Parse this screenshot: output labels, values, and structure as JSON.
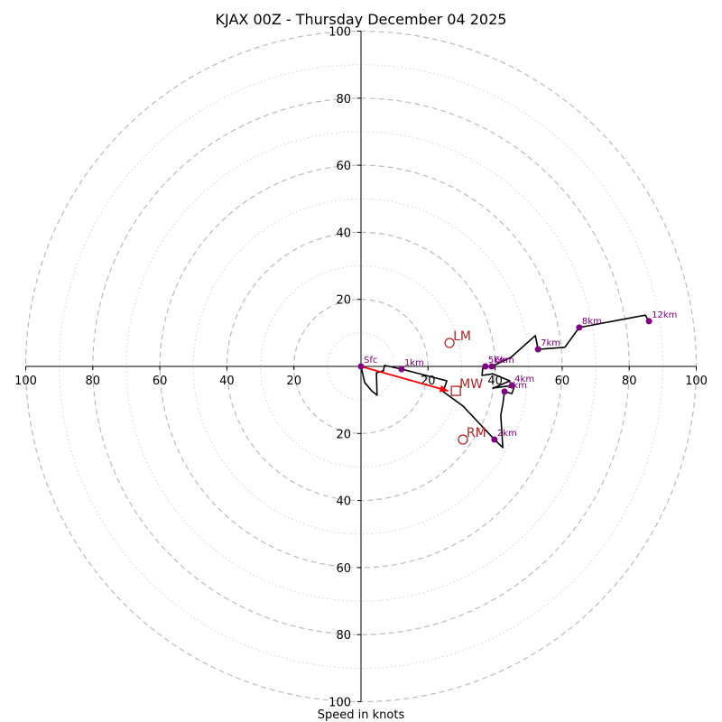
{
  "chart_data": {
    "type": "line",
    "subtype": "hodograph",
    "title": "KJAX 00Z - Thursday December 04 2025",
    "xlabel": "Speed in knots",
    "ylabel": "",
    "units": "knots",
    "range": [
      -100,
      100
    ],
    "rings_dashed": [
      20,
      40,
      60,
      80,
      100
    ],
    "rings_dotted": [
      10,
      30,
      50,
      70,
      90
    ],
    "x_ticks": [
      {
        "value": -100,
        "label": "100"
      },
      {
        "value": -80,
        "label": "80"
      },
      {
        "value": -60,
        "label": "60"
      },
      {
        "value": -40,
        "label": "40"
      },
      {
        "value": -20,
        "label": "20"
      },
      {
        "value": 20,
        "label": "20"
      },
      {
        "value": 40,
        "label": "40"
      },
      {
        "value": 60,
        "label": "60"
      },
      {
        "value": 80,
        "label": "80"
      },
      {
        "value": 100,
        "label": "100"
      }
    ],
    "y_ticks": [
      {
        "value": 100,
        "label": "100"
      },
      {
        "value": 80,
        "label": "80"
      },
      {
        "value": 60,
        "label": "60"
      },
      {
        "value": 40,
        "label": "40"
      },
      {
        "value": 20,
        "label": "20"
      },
      {
        "value": -20,
        "label": "20"
      },
      {
        "value": -40,
        "label": "40"
      },
      {
        "value": -60,
        "label": "60"
      },
      {
        "value": -80,
        "label": "80"
      },
      {
        "value": -100,
        "label": "100"
      }
    ],
    "grid": true,
    "hodograph_trace": {
      "u": [
        0,
        1.1,
        3.2,
        4.8,
        4.6,
        6.7,
        7.0,
        12.1,
        25.6,
        24.5,
        30.4,
        39.8,
        42.3,
        41.7,
        42.3,
        42.8,
        45.0,
        45.8,
        45.0,
        39.3,
        40.1,
        44.4,
        39.3,
        36.1,
        36.3,
        37.1,
        39.0,
        44.7,
        52.0,
        52.8,
        60.8,
        65.1,
        84.8,
        85.9
      ],
      "v": [
        0,
        -4.8,
        -7.3,
        -8.6,
        -1.9,
        -1.3,
        0.3,
        -0.8,
        -4.3,
        -7.5,
        -11.8,
        -21.8,
        -24.2,
        -14.5,
        -11.3,
        -7.5,
        -8.1,
        -5.9,
        -5.7,
        -6.5,
        -6.2,
        -4.3,
        -2.2,
        -2.7,
        -0.5,
        0,
        0,
        2.7,
        9.2,
        5.1,
        5.7,
        11.6,
        15.3,
        13.5
      ]
    },
    "height_markers": [
      {
        "label": "Sfc",
        "u": 0,
        "v": 0
      },
      {
        "label": "1km",
        "u": 12.1,
        "v": -0.8
      },
      {
        "label": "2km",
        "u": 39.8,
        "v": -21.8
      },
      {
        "label": "3km",
        "u": 42.8,
        "v": -7.5
      },
      {
        "label": "4km",
        "u": 45.0,
        "v": -5.7
      },
      {
        "label": "5km",
        "u": 37.1,
        "v": 0
      },
      {
        "label": "6km",
        "u": 39.0,
        "v": 0
      },
      {
        "label": "7km",
        "u": 52.8,
        "v": 5.1
      },
      {
        "label": "8km",
        "u": 65.1,
        "v": 11.6
      },
      {
        "label": "12km",
        "u": 85.9,
        "v": 13.5
      }
    ],
    "storm_motions": [
      {
        "label": "LM",
        "u": 26.4,
        "v": 7.0,
        "marker": "circle"
      },
      {
        "label": "RM",
        "u": 30.4,
        "v": -21.8,
        "marker": "circle"
      },
      {
        "label": "MW",
        "u": 28.3,
        "v": -7.3,
        "marker": "square"
      }
    ],
    "shear_vector": {
      "from": {
        "u": 0,
        "v": 0
      },
      "to": {
        "u": 26.0,
        "v": -7.3
      }
    },
    "colors": {
      "trace": "#000000",
      "markers": "#800080",
      "storm_motion": "#b22222",
      "shear_arrow": "#ff0000",
      "grid": "#bbbbbb"
    }
  }
}
